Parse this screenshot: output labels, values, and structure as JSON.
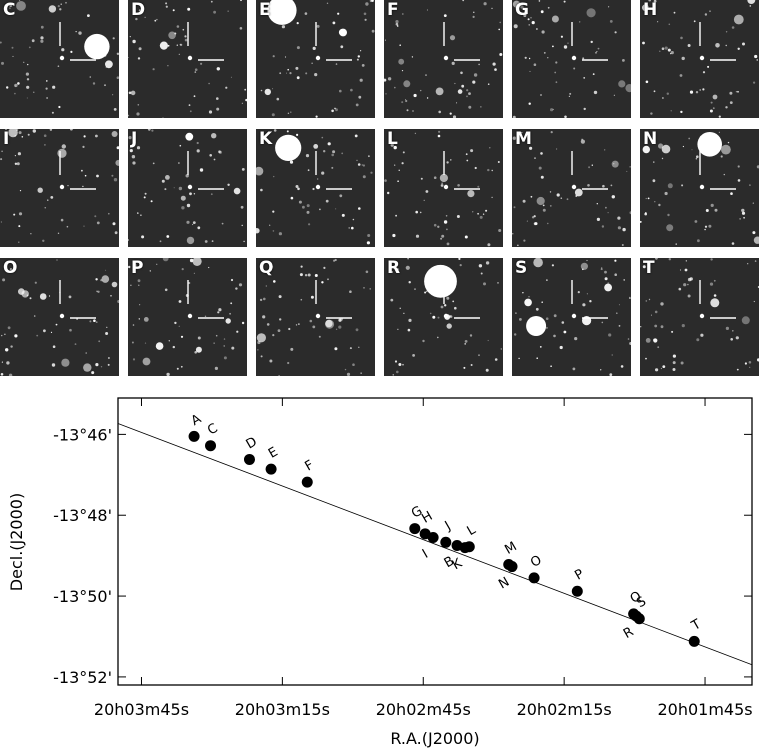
{
  "thumbnails": [
    {
      "label": "C"
    },
    {
      "label": "D"
    },
    {
      "label": "E"
    },
    {
      "label": "F"
    },
    {
      "label": "G"
    },
    {
      "label": "H"
    },
    {
      "label": "I"
    },
    {
      "label": "J"
    },
    {
      "label": "K"
    },
    {
      "label": "L"
    },
    {
      "label": "M"
    },
    {
      "label": "N"
    },
    {
      "label": "O"
    },
    {
      "label": "P"
    },
    {
      "label": "Q"
    },
    {
      "label": "R"
    },
    {
      "label": "S"
    },
    {
      "label": "T"
    }
  ],
  "colors": {
    "background": "#ffffff",
    "thumb_sky": "#2b2b2b",
    "star": "#ffffff",
    "axis": "#000000",
    "marker": "#000000"
  },
  "chart_data": {
    "type": "scatter",
    "xlabel": "R.A.(J2000)",
    "ylabel": "Decl.(J2000)",
    "x_unit": "seconds of right ascension relative to 20h00m00s",
    "xlim": [
      230,
      95
    ],
    "ylim": [
      -52.2,
      -45.1
    ],
    "x_reversed": true,
    "x_ticks": [
      {
        "value": 225,
        "label": "20h03m45s"
      },
      {
        "value": 195,
        "label": "20h03m15s"
      },
      {
        "value": 165,
        "label": "20h02m45s"
      },
      {
        "value": 135,
        "label": "20h02m15s"
      },
      {
        "value": 105,
        "label": "20h01m45s"
      }
    ],
    "y_ticks": [
      {
        "value": -46,
        "label": "-13°46'"
      },
      {
        "value": -48,
        "label": "-13°48'"
      },
      {
        "value": -50,
        "label": "-13°50'"
      },
      {
        "value": -52,
        "label": "-13°52'"
      }
    ],
    "fit_line": {
      "x": [
        230,
        95
      ],
      "y": [
        -45.73,
        -51.7
      ]
    },
    "points": [
      {
        "label": "A",
        "x": 213.8,
        "y": -46.05,
        "label_pos": "above"
      },
      {
        "label": "C",
        "x": 210.3,
        "y": -46.28,
        "label_pos": "above"
      },
      {
        "label": "D",
        "x": 202.0,
        "y": -46.62,
        "label_pos": "above"
      },
      {
        "label": "E",
        "x": 197.4,
        "y": -46.86,
        "label_pos": "above"
      },
      {
        "label": "F",
        "x": 189.7,
        "y": -47.18,
        "label_pos": "above"
      },
      {
        "label": "G",
        "x": 166.8,
        "y": -48.33,
        "label_pos": "above"
      },
      {
        "label": "H",
        "x": 164.6,
        "y": -48.46,
        "label_pos": "above"
      },
      {
        "label": "I",
        "x": 162.9,
        "y": -48.55,
        "label_pos": "below"
      },
      {
        "label": "J",
        "x": 160.2,
        "y": -48.67,
        "label_pos": "above"
      },
      {
        "label": "B",
        "x": 157.8,
        "y": -48.75,
        "label_pos": "below"
      },
      {
        "label": "K",
        "x": 156.1,
        "y": -48.8,
        "label_pos": "below"
      },
      {
        "label": "L",
        "x": 155.2,
        "y": -48.78,
        "label_pos": "above"
      },
      {
        "label": "M",
        "x": 146.8,
        "y": -49.22,
        "label_pos": "above"
      },
      {
        "label": "N",
        "x": 146.1,
        "y": -49.27,
        "label_pos": "below"
      },
      {
        "label": "O",
        "x": 141.4,
        "y": -49.55,
        "label_pos": "above"
      },
      {
        "label": "P",
        "x": 132.2,
        "y": -49.88,
        "label_pos": "above"
      },
      {
        "label": "Q",
        "x": 120.2,
        "y": -50.44,
        "label_pos": "above"
      },
      {
        "label": "R",
        "x": 119.6,
        "y": -50.5,
        "label_pos": "below"
      },
      {
        "label": "S",
        "x": 119.0,
        "y": -50.56,
        "label_pos": "above"
      },
      {
        "label": "T",
        "x": 107.3,
        "y": -51.12,
        "label_pos": "above"
      }
    ]
  }
}
